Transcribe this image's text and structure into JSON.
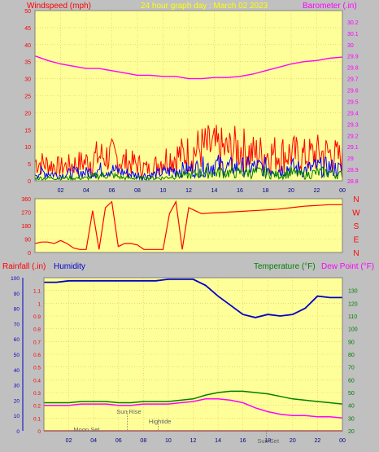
{
  "header": {
    "left_label": "Windspeed (mph)",
    "center_label": "24 hour graph day : March 02 2023",
    "right_label": "Barometer (.in)"
  },
  "colors": {
    "plot_bg": "#ffff99",
    "frame_bg": "#c0c0c0",
    "grid": "#e0c060",
    "wind_gust": "#ff0000",
    "wind_avg": "#0000ff",
    "wind_min": "#008000",
    "barometer": "#ff00ff",
    "direction": "#ff0000",
    "humidity": "#0000c8",
    "temperature": "#008000",
    "dew_point": "#ff00ff",
    "rainfall": "#ff0000",
    "title_yellow": "#ffff00"
  },
  "bottom_header": {
    "rain_label": "Rainfall (.in)",
    "humidity_label": "Humidity",
    "temp_label": "Temperature (°F)",
    "dew_label": "Dew Point (°F)"
  },
  "x_ticks": [
    "02",
    "04",
    "06",
    "08",
    "10",
    "12",
    "14",
    "16",
    "18",
    "20",
    "22",
    "00"
  ],
  "chart_data": [
    {
      "type": "line",
      "name": "wind-barometer",
      "ylabel_left": "Windspeed (mph)",
      "ylabel_right": "Barometer (.in)",
      "ylim_left": [
        0,
        50
      ],
      "yticks_left": [
        "0",
        "5",
        "10",
        "15",
        "20",
        "25",
        "30",
        "35",
        "40",
        "45",
        "50"
      ],
      "ylim_right": [
        28.8,
        30.3
      ],
      "yticks_right": [
        "28.8",
        "28.9",
        "29",
        "29.1",
        "29.2",
        "29.3",
        "29.4",
        "29.5",
        "29.6",
        "29.7",
        "29.8",
        "29.9",
        "30",
        "30.1",
        "30.2"
      ],
      "x_hours": [
        0,
        1,
        2,
        3,
        4,
        5,
        6,
        7,
        8,
        9,
        10,
        11,
        12,
        13,
        14,
        15,
        16,
        17,
        18,
        19,
        20,
        21,
        22,
        23,
        24
      ],
      "series": [
        {
          "key": "gust",
          "values": [
            7,
            6,
            5,
            6,
            7,
            9,
            9,
            7,
            6,
            4,
            8,
            9,
            10,
            12,
            12,
            11,
            12,
            10,
            10,
            10,
            10,
            9,
            10,
            10,
            8
          ]
        },
        {
          "key": "avg",
          "values": [
            3,
            3,
            2,
            3,
            3,
            4,
            4,
            3,
            2,
            2,
            3,
            4,
            4,
            5,
            6,
            5,
            5,
            5,
            5,
            4,
            5,
            4,
            5,
            5,
            4
          ]
        },
        {
          "key": "min",
          "values": [
            1,
            1,
            1,
            1,
            1,
            2,
            2,
            1,
            1,
            1,
            1,
            2,
            2,
            3,
            3,
            3,
            3,
            3,
            3,
            2,
            3,
            2,
            3,
            3,
            2
          ]
        },
        {
          "key": "barometer",
          "values": [
            29.9,
            29.86,
            29.83,
            29.81,
            29.79,
            29.79,
            29.77,
            29.75,
            29.73,
            29.73,
            29.72,
            29.72,
            29.7,
            29.7,
            29.71,
            29.71,
            29.72,
            29.74,
            29.77,
            29.8,
            29.83,
            29.85,
            29.86,
            29.88,
            29.89
          ]
        }
      ]
    },
    {
      "type": "line",
      "name": "wind-direction",
      "ylim": [
        0,
        360
      ],
      "yticks": [
        "0",
        "90",
        "180",
        "270",
        "360"
      ],
      "compass": [
        "N",
        "W",
        "S",
        "E",
        "N"
      ],
      "x_hours": [
        0,
        0.5,
        1,
        1.5,
        2,
        2.5,
        3,
        3.5,
        4,
        4.5,
        5,
        5.5,
        6,
        6.5,
        7,
        7.5,
        8,
        8.5,
        9,
        9.5,
        10,
        10.5,
        11,
        11.5,
        12,
        12.5,
        13,
        14,
        15,
        16,
        17,
        18,
        19,
        20,
        21,
        22,
        23,
        24
      ],
      "values": [
        60,
        70,
        70,
        60,
        80,
        60,
        30,
        20,
        20,
        280,
        20,
        300,
        340,
        40,
        60,
        60,
        50,
        20,
        20,
        20,
        20,
        260,
        340,
        20,
        300,
        280,
        260,
        265,
        270,
        275,
        280,
        285,
        290,
        300,
        310,
        315,
        320,
        320
      ]
    },
    {
      "type": "line",
      "name": "humidity-temperature",
      "ylabel_left_rain": "Rainfall (.in)",
      "ylabel_left_humidity": "Humidity",
      "ylabel_right": "Temperature (°F) Dew Point (°F)",
      "ylim_rain": [
        0,
        1.2
      ],
      "yticks_rain": [
        "0",
        "0.1",
        "0.2",
        "0.3",
        "0.4",
        "0.5",
        "0.6",
        "0.7",
        "0.8",
        "0.9",
        "1",
        "1.1"
      ],
      "ylim_humidity": [
        0,
        100
      ],
      "yticks_humidity": [
        "0",
        "10",
        "20",
        "30",
        "40",
        "50",
        "60",
        "70",
        "80",
        "90",
        "100"
      ],
      "ylim_temp": [
        20,
        140
      ],
      "yticks_temp": [
        "20",
        "30",
        "40",
        "50",
        "60",
        "70",
        "80",
        "90",
        "100",
        "110",
        "120",
        "130"
      ],
      "x_hours": [
        0,
        1,
        2,
        3,
        4,
        5,
        6,
        7,
        8,
        9,
        10,
        11,
        12,
        13,
        14,
        15,
        16,
        17,
        18,
        19,
        20,
        21,
        22,
        23,
        24
      ],
      "series": [
        {
          "key": "humidity",
          "values": [
            97,
            97,
            98,
            98,
            98,
            98,
            98,
            98,
            98,
            98,
            99,
            99,
            99,
            95,
            88,
            82,
            76,
            74,
            76,
            75,
            76,
            80,
            88,
            87,
            87
          ]
        },
        {
          "key": "temperature",
          "values": [
            42,
            42,
            42,
            43,
            43,
            43,
            42,
            42,
            43,
            43,
            43,
            44,
            45,
            48,
            50,
            51,
            51,
            50,
            49,
            47,
            45,
            44,
            43,
            42,
            41
          ]
        },
        {
          "key": "dew_point",
          "values": [
            40,
            40,
            40,
            41,
            41,
            41,
            40,
            40,
            41,
            41,
            41,
            42,
            43,
            45,
            45,
            44,
            42,
            38,
            35,
            33,
            32,
            32,
            31,
            31,
            30
          ]
        },
        {
          "key": "rainfall",
          "values": [
            0,
            0,
            0,
            0,
            0,
            0,
            0,
            0,
            0,
            0,
            0,
            0,
            0,
            0,
            0,
            0,
            0,
            0,
            0,
            0,
            0,
            0,
            0,
            0,
            0
          ]
        }
      ],
      "annotations": [
        {
          "text": "Moon Set",
          "hour": 3.3
        },
        {
          "text": "Sun Rise",
          "hour": 6.7
        },
        {
          "text": "Hightide",
          "hour": 9.2
        },
        {
          "text": "Sun Set",
          "hour": 17.9
        }
      ]
    }
  ]
}
